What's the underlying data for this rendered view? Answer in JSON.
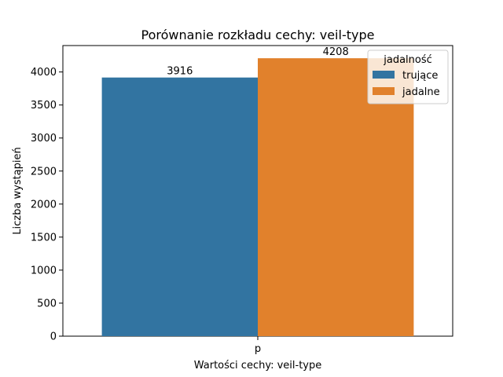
{
  "chart_data": {
    "type": "bar",
    "title": "Porównanie rozkładu cechy: veil-type",
    "xlabel": "Wartości cechy: veil-type",
    "ylabel": "Liczba wystąpień",
    "categories": [
      "p"
    ],
    "series": [
      {
        "name": "trujące",
        "values": [
          3916
        ],
        "color": "#3274a1"
      },
      {
        "name": "jadalne",
        "values": [
          4208
        ],
        "color": "#e1812c"
      }
    ],
    "ylim": [
      0,
      4400
    ],
    "yticks": [
      0,
      500,
      1000,
      1500,
      2000,
      2500,
      3000,
      3500,
      4000
    ],
    "data_labels": [
      "3916",
      "4208"
    ],
    "legend": {
      "title": "jadalność",
      "location": "top-right"
    },
    "grid": false
  }
}
